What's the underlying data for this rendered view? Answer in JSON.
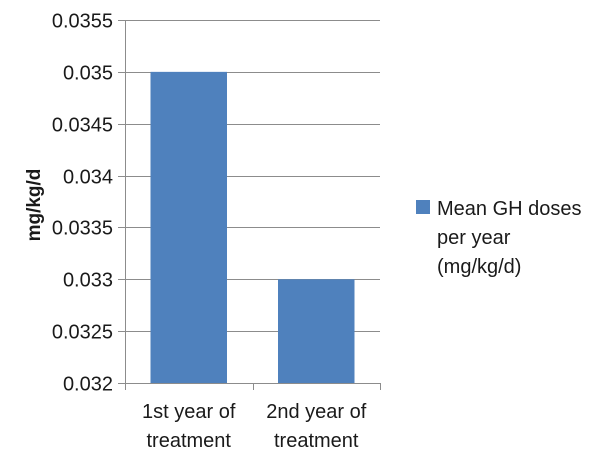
{
  "chart_data": {
    "type": "bar",
    "categories": [
      [
        "1st year of",
        "treatment"
      ],
      [
        "2nd year of",
        "treatment"
      ]
    ],
    "series": [
      {
        "name": [
          "Mean GH doses",
          "per year",
          "(mg/kg/d)"
        ],
        "values": [
          0.035,
          0.033
        ],
        "color": "#4f81bd"
      }
    ],
    "ylabel": "mg/kg/d",
    "ylim": [
      0.032,
      0.0355
    ],
    "yticks": [
      "0.032",
      "0.0325",
      "0.033",
      "0.0335",
      "0.034",
      "0.0345",
      "0.035",
      "0.0355"
    ],
    "grid": true,
    "legend_position": "right"
  }
}
